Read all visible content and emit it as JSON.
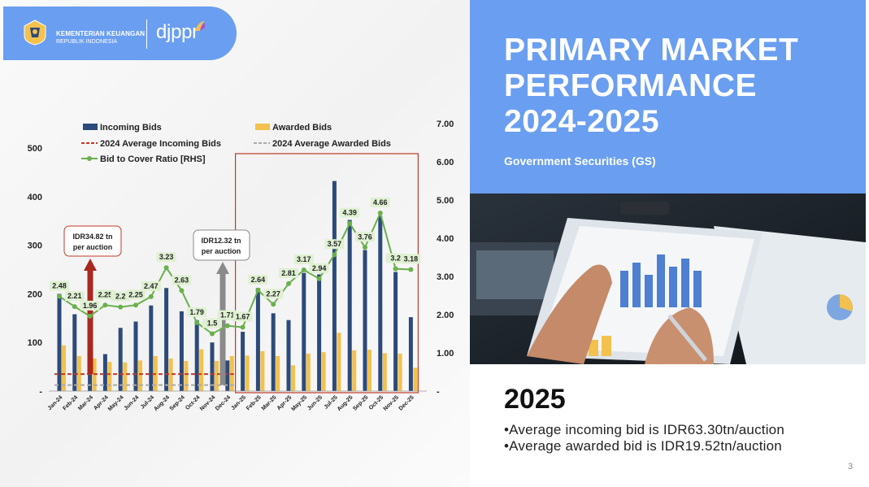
{
  "header": {
    "ministry_line1": "KEMENTERIAN KEUANGAN",
    "ministry_line2": "REPUBLIK INDONESIA",
    "brand": "djppr"
  },
  "title_panel": {
    "title_line1": "PRIMARY MARKET",
    "title_line2": "PERFORMANCE",
    "title_line3": "2024-2025",
    "subtitle": "Government Securities (GS)",
    "accent_color": "#6a9ef0"
  },
  "summary": {
    "year": "2025",
    "bullet1": "•Average incoming bid is IDR63.30tn/auction",
    "bullet2": "•Average awarded bid is IDR19.52tn/auction"
  },
  "page_number": "3",
  "chart_data": {
    "type": "bar",
    "categories": [
      "Jan-24",
      "Feb-24",
      "Mar-24",
      "Apr-24",
      "May-24",
      "Jun-24",
      "Jul-24",
      "Aug-24",
      "Sep-24",
      "Oct-24",
      "Nov-24",
      "Dec-24",
      "Jan-25",
      "Feb-25",
      "Mar-25",
      "Apr-25",
      "May-25",
      "Jun-25",
      "Jul-25",
      "Aug-25",
      "Sep-25",
      "Oct-25",
      "Nov-25",
      "Dec-25"
    ],
    "series": [
      {
        "name": "Incoming Bids",
        "kind": "bar",
        "color": "#2c4a7a",
        "values": [
          200,
          158,
          200,
          76,
          130,
          143,
          176,
          212,
          164,
          146,
          100,
          63,
          122,
          212,
          160,
          146,
          243,
          240,
          432,
          352,
          290,
          360,
          245,
          152
        ]
      },
      {
        "name": "Awarded Bids",
        "kind": "bar",
        "color": "#f2c14e",
        "values": [
          94,
          72,
          67,
          60,
          59,
          63,
          72,
          67,
          62,
          86,
          62,
          72,
          73,
          82,
          72,
          53,
          77,
          80,
          120,
          84,
          85,
          78,
          77,
          48
        ]
      },
      {
        "name": "Bid to Cover Ratio [RHS]",
        "kind": "line",
        "axis": "right",
        "color": "#6ab04c",
        "values": [
          2.48,
          2.21,
          1.96,
          2.25,
          2.2,
          2.25,
          2.47,
          3.23,
          2.63,
          1.79,
          1.5,
          1.71,
          1.67,
          2.64,
          2.27,
          2.81,
          3.17,
          2.94,
          3.57,
          4.39,
          3.76,
          4.66,
          3.2,
          3.18
        ]
      }
    ],
    "reference_lines": [
      {
        "name": "2024 Average Incoming Bids",
        "color": "#c0392b",
        "value": 34.82
      },
      {
        "name": "2024 Average Awarded Bids",
        "color": "#aaaaaa",
        "value": 12.32
      }
    ],
    "callouts": [
      {
        "text1": "IDR34.82 tn",
        "text2": "per auction",
        "arrow_color": "#a8281e"
      },
      {
        "text1": "IDR12.32 tn",
        "text2": "per auction",
        "arrow_color": "#8a8a8a"
      }
    ],
    "left_axis": {
      "ylim": [
        0,
        500
      ],
      "ticks": [
        "-",
        "100",
        "200",
        "300",
        "400",
        "500"
      ]
    },
    "right_axis": {
      "ylim": [
        0,
        7
      ],
      "ticks": [
        "-",
        "1.00",
        "2.00",
        "3.00",
        "4.00",
        "5.00",
        "6.00",
        "7.00"
      ]
    },
    "highlight_range": [
      "Jan-25",
      "Dec-25"
    ],
    "legend": [
      "Incoming Bids",
      "Awarded Bids",
      "2024 Average Incoming Bids",
      "2024 Average Awarded Bids",
      "Bid to Cover Ratio [RHS]"
    ]
  }
}
